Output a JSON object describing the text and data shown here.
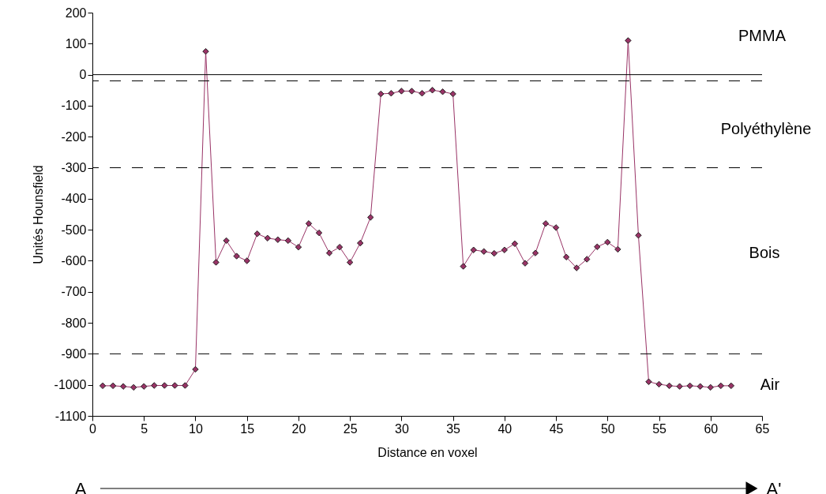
{
  "chart_data": {
    "type": "line",
    "xlabel": "Distance en voxel",
    "ylabel": "Unités Hounsfield",
    "x": [
      1,
      2,
      3,
      4,
      5,
      6,
      7,
      8,
      9,
      10,
      11,
      12,
      13,
      14,
      15,
      16,
      17,
      18,
      19,
      20,
      21,
      22,
      23,
      24,
      25,
      26,
      27,
      28,
      29,
      30,
      31,
      32,
      33,
      34,
      35,
      36,
      37,
      38,
      39,
      40,
      41,
      42,
      43,
      44,
      45,
      46,
      47,
      48,
      49,
      50,
      51,
      52,
      53,
      54,
      55,
      56,
      57,
      58,
      59,
      60,
      61,
      62
    ],
    "series": [
      {
        "color": "#993366",
        "values": [
          -1003,
          -1003,
          -1005,
          -1008,
          -1005,
          -1002,
          -1002,
          -1002,
          -1002,
          -950,
          75,
          -605,
          -535,
          -585,
          -600,
          -513,
          -527,
          -532,
          -535,
          -556,
          -480,
          -510,
          -575,
          -556,
          -605,
          -543,
          -460,
          -62,
          -60,
          -53,
          -53,
          -60,
          -50,
          -55,
          -62,
          -618,
          -565,
          -570,
          -576,
          -565,
          -545,
          -608,
          -575,
          -480,
          -493,
          -588,
          -623,
          -595,
          -555,
          -540,
          -563,
          110,
          -518,
          -990,
          -998,
          -1003,
          -1005,
          -1003,
          -1005,
          -1008,
          -1003,
          -1003
        ]
      }
    ],
    "xlim": [
      0,
      65
    ],
    "ylim": [
      -1100,
      200
    ],
    "xticks": [
      0,
      5,
      10,
      15,
      20,
      25,
      30,
      35,
      40,
      45,
      50,
      55,
      60,
      65
    ],
    "yticks": [
      -1100,
      -1000,
      -900,
      -800,
      -700,
      -600,
      -500,
      -400,
      -300,
      -200,
      -100,
      0,
      100,
      200
    ],
    "ref_lines": [
      {
        "axis": "y",
        "value": 0,
        "line_style": "solid",
        "color": "#000000"
      },
      {
        "axis": "y",
        "value": -20,
        "line_style": "dashed",
        "color": "#000000"
      },
      {
        "axis": "y",
        "value": -300,
        "line_style": "dashed",
        "color": "#000000"
      },
      {
        "axis": "y",
        "value": -900,
        "line_style": "dashed",
        "color": "#000000"
      }
    ],
    "annotations": [
      "PMMA",
      "Polyéthylène",
      "Bois",
      "Air",
      "A",
      "A'"
    ],
    "grid": false,
    "marker": "diamond",
    "line_style": "solid"
  }
}
